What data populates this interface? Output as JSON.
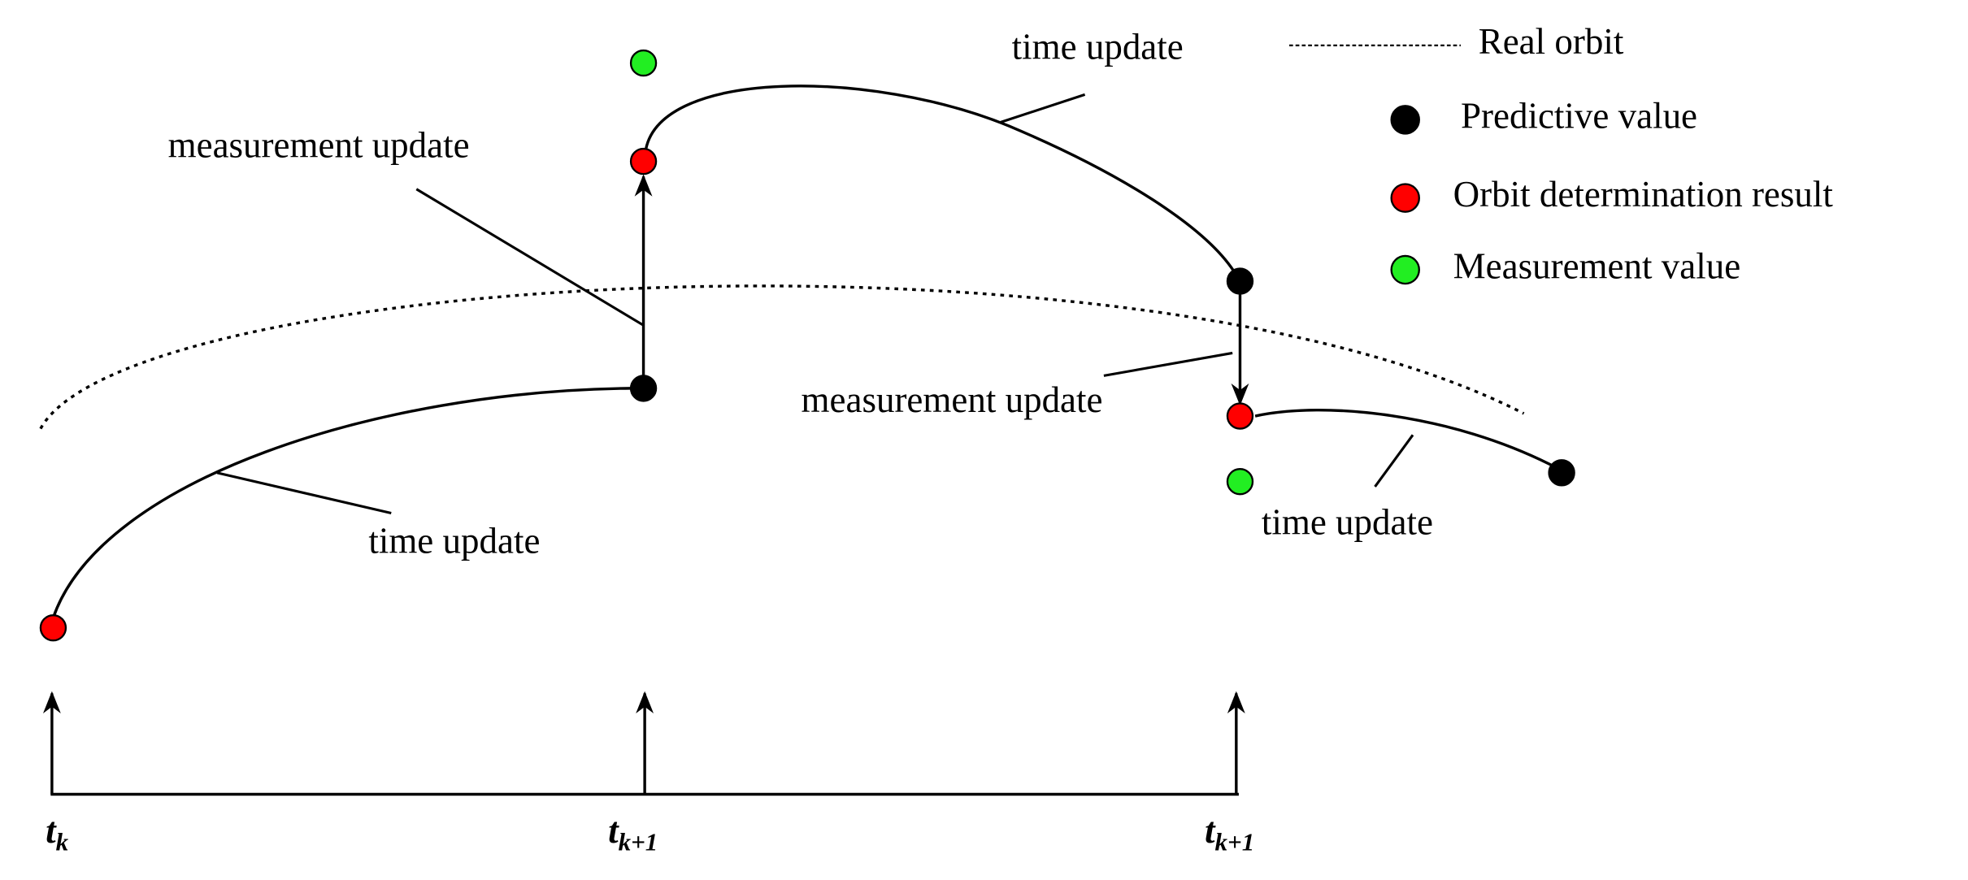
{
  "labels": [
    "measurement update",
    "time update",
    "time update",
    "measurement update",
    "time update"
  ],
  "legend": [
    "Real orbit",
    "Predictive value",
    "Orbit determination result",
    "Measurement value"
  ],
  "time_axis": [
    {
      "base": "t",
      "sub": "k"
    },
    {
      "base": "t",
      "sub": "k+1"
    },
    {
      "base": "t",
      "sub": "k+1"
    }
  ]
}
